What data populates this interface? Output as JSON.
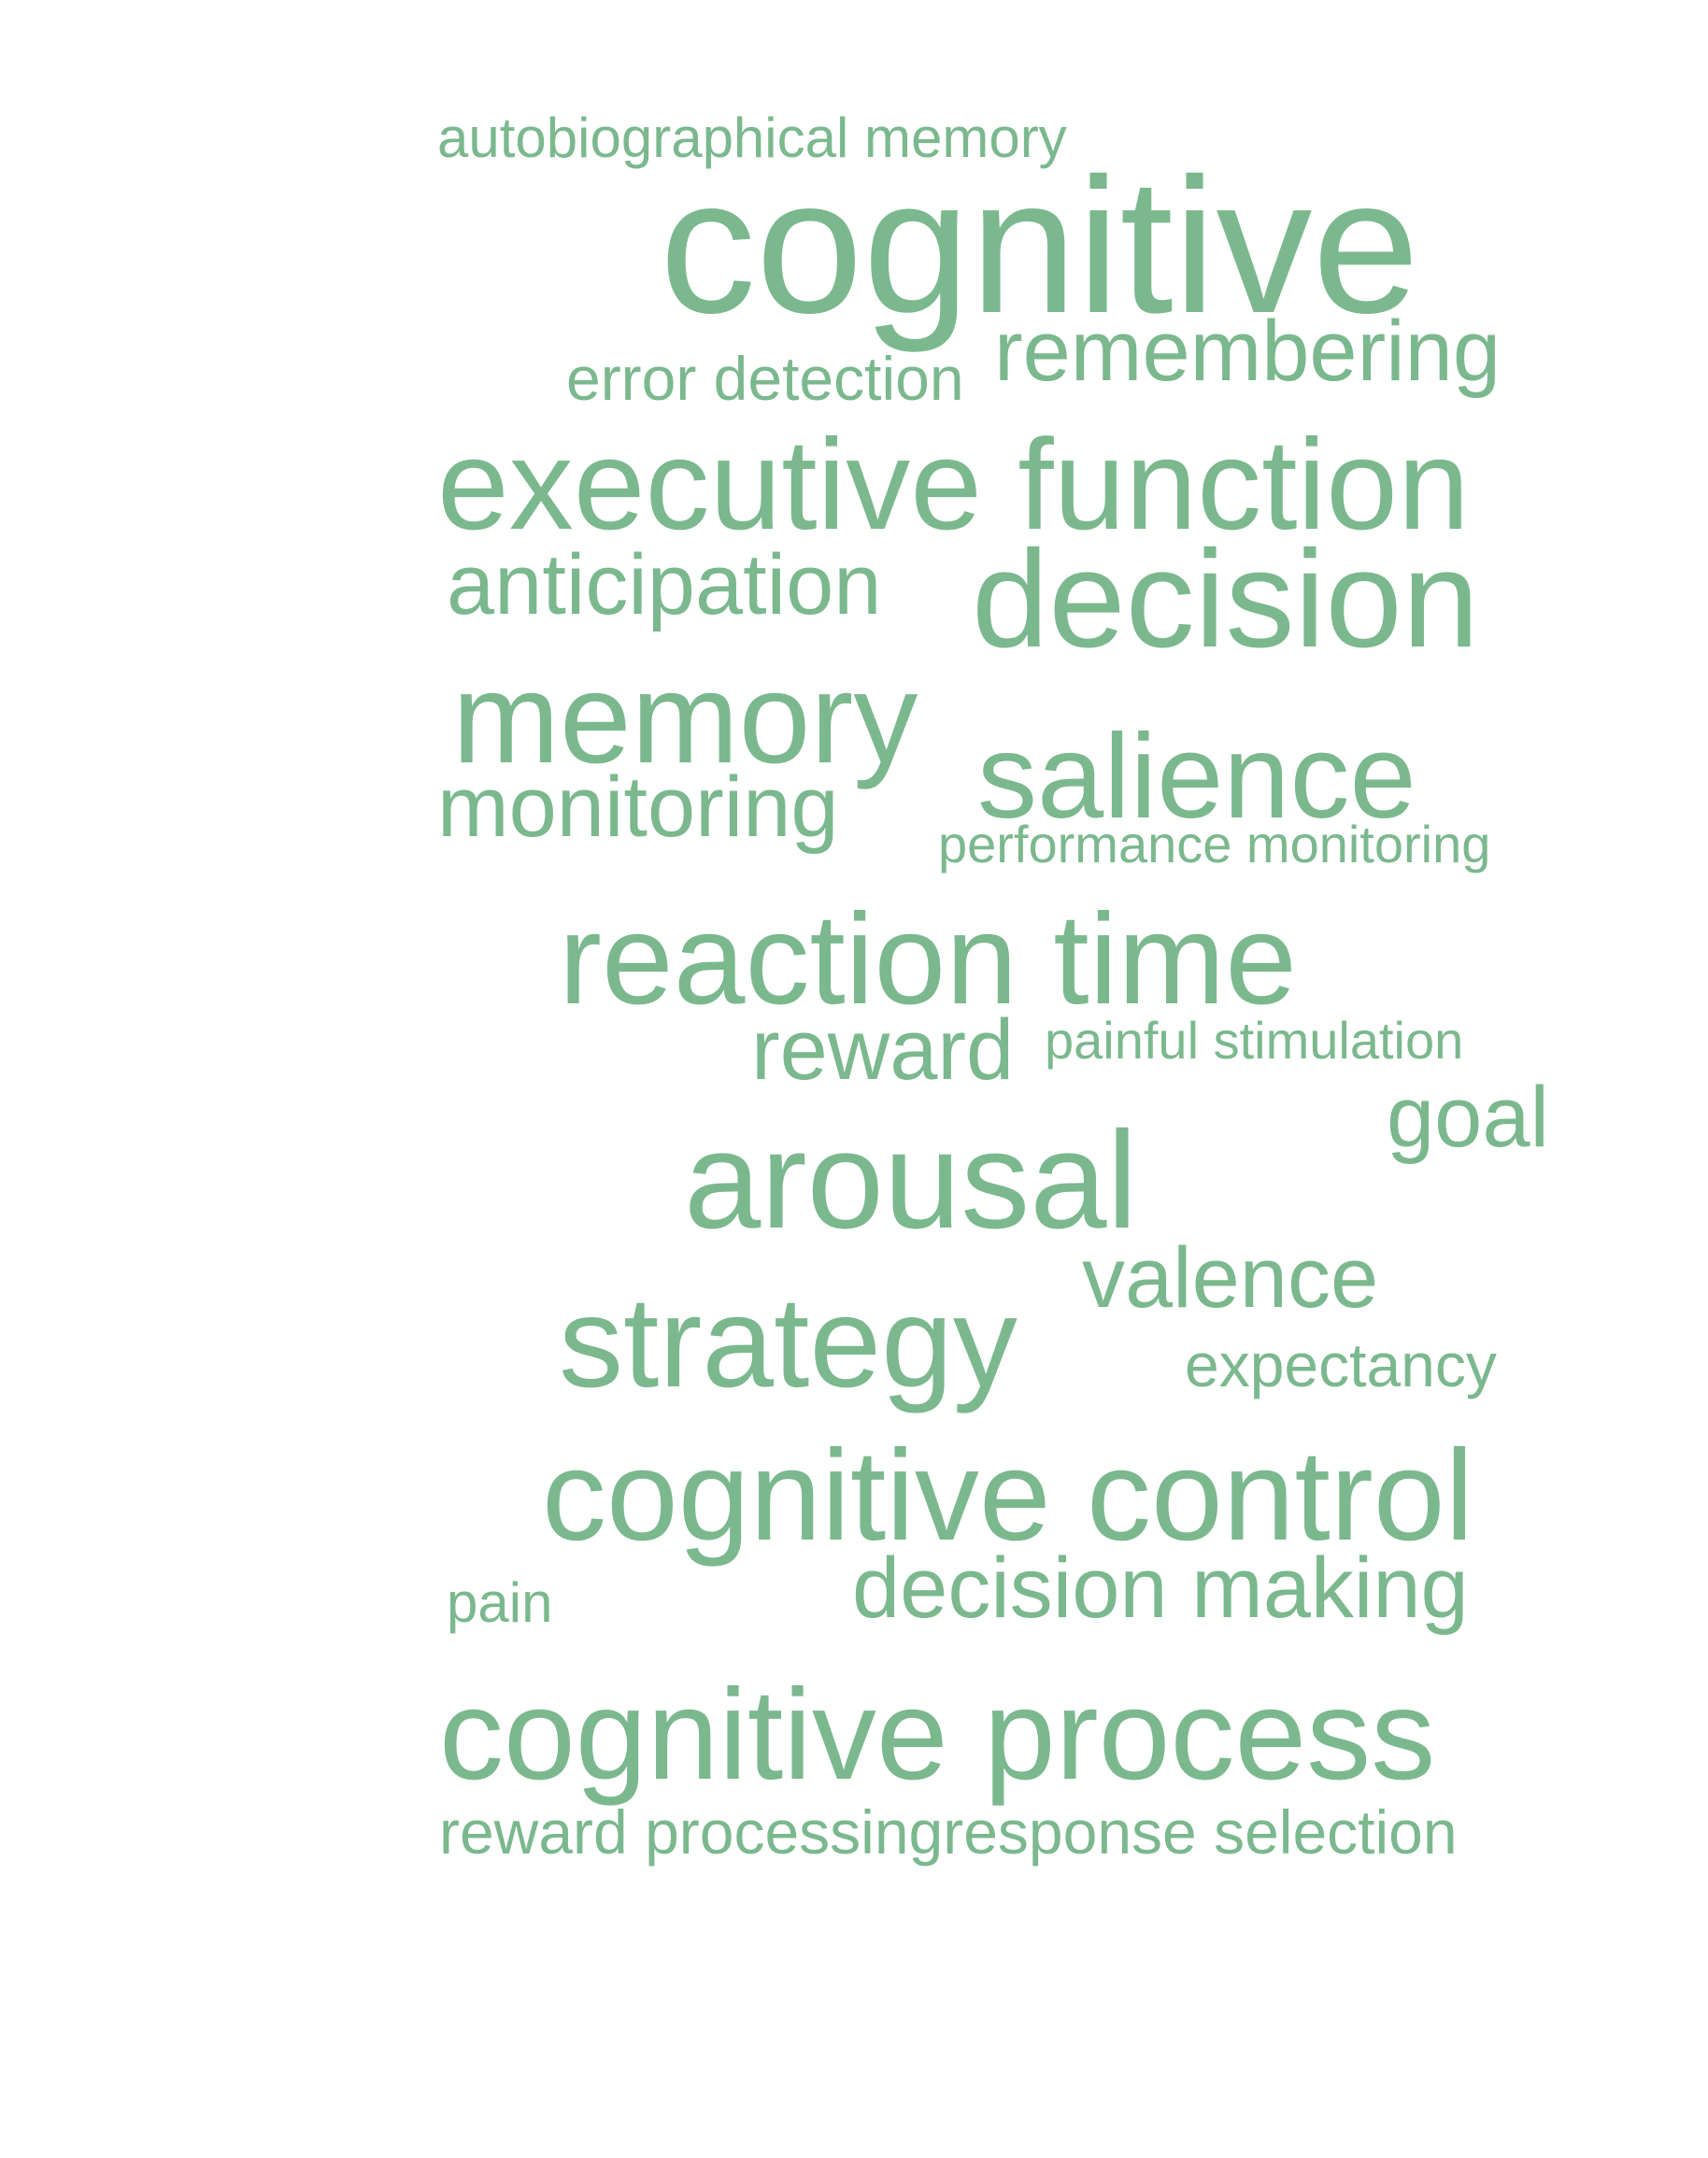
{
  "word_cloud": {
    "color": "#7bb88e",
    "words": {
      "autobiographical_memory": "autobiographical memory",
      "cognitive": "cognitive",
      "remembering": "remembering",
      "error_detection": "error detection",
      "executive_function": "executive function",
      "anticipation": "anticipation",
      "decision": "decision",
      "memory": "memory",
      "salience": "salience",
      "monitoring": "monitoring",
      "performance_monitoring": "performance monitoring",
      "reaction_time": "reaction time",
      "reward": "reward",
      "painful_stimulation": "painful stimulation",
      "goal": "goal",
      "arousal": "arousal",
      "valence": "valence",
      "strategy": "strategy",
      "expectancy": "expectancy",
      "cognitive_control": "cognitive control",
      "pain": "pain",
      "decision_making": "decision making",
      "cognitive_process": "cognitive process",
      "reward_processing_response_selection": "reward processingresponse selection"
    }
  }
}
